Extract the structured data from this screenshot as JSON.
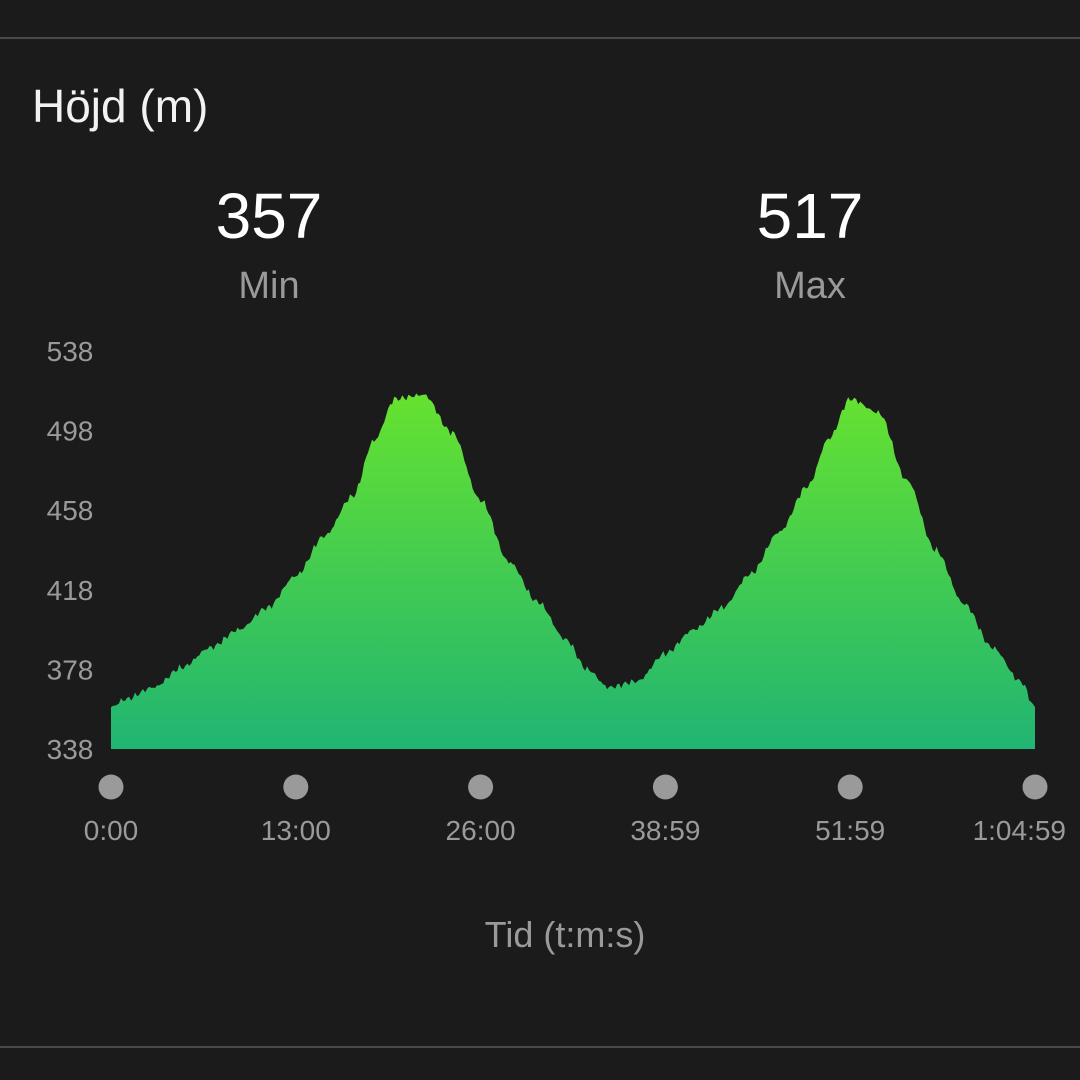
{
  "panel": {
    "title": "Höjd (m)"
  },
  "stats": {
    "min": {
      "value": "357",
      "label": "Min"
    },
    "max": {
      "value": "517",
      "label": "Max"
    }
  },
  "colors": {
    "background": "#1b1b1b",
    "fill_top": "#66e22f",
    "fill_bottom": "#20b573",
    "tick_text": "#9a9a9a",
    "marker": "#9a9a9a"
  },
  "chart_data": {
    "type": "area",
    "title": "Höjd (m)",
    "xlabel": "Tid (t:m:s)",
    "ylabel": "",
    "x_tick_labels": [
      "0:00",
      "13:00",
      "26:00",
      "38:59",
      "51:59",
      "1:04:59"
    ],
    "y_tick_labels": [
      "538",
      "498",
      "458",
      "418",
      "378",
      "338"
    ],
    "xlim_minutes": [
      0,
      65
    ],
    "ylim": [
      338,
      538
    ],
    "grid": false,
    "legend": "none",
    "series": [
      {
        "x_minutes": [
          0,
          1,
          3,
          5,
          7,
          9,
          11,
          13,
          15,
          17,
          18.5,
          20,
          22,
          24,
          26,
          28,
          30,
          32,
          33.5,
          35,
          37,
          39,
          41,
          43,
          45,
          47,
          49,
          50.5,
          52,
          54,
          56,
          58,
          60,
          62,
          64,
          65
        ],
        "y": [
          359,
          363,
          369,
          379,
          389,
          398,
          409,
          425,
          445,
          465,
          493,
          514,
          516,
          497,
          463,
          432,
          412,
          393,
          378,
          369,
          372,
          386,
          398,
          409,
          426,
          447,
          470,
          494,
          514,
          507,
          473,
          438,
          411,
          389,
          372,
          359
        ]
      }
    ]
  }
}
